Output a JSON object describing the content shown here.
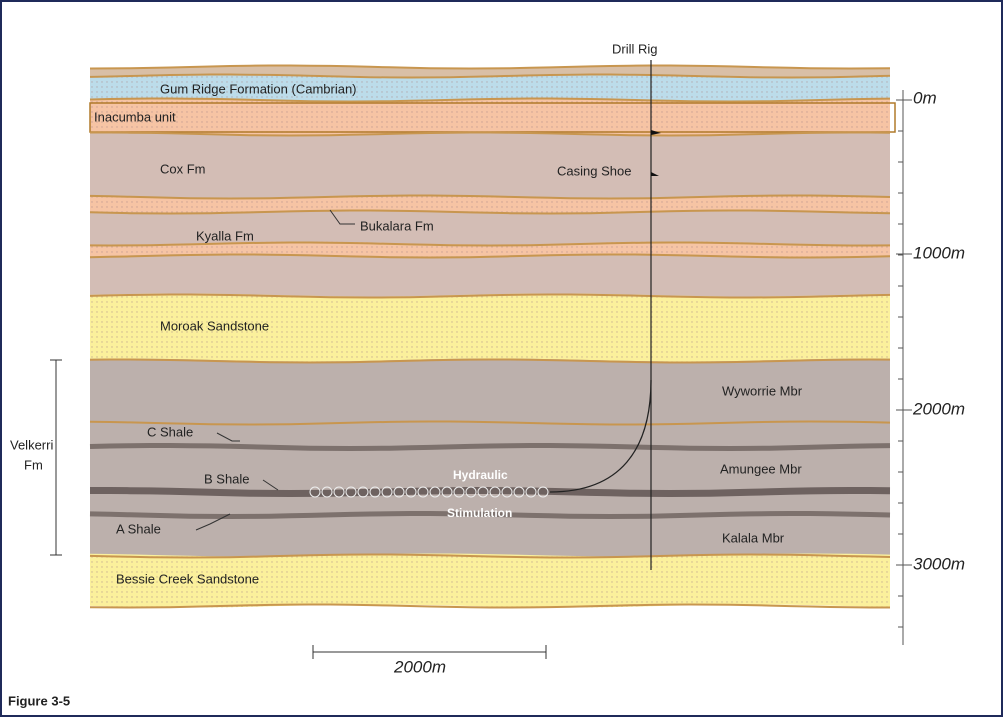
{
  "figure": {
    "caption": "Figure 3-5",
    "scale_bar": "2000m"
  },
  "well": {
    "drill_rig": "Drill Rig",
    "casing_shoe": "Casing Shoe",
    "stimulation": [
      "Hydraulic",
      "Stimulation"
    ]
  },
  "formations": [
    "Gum Ridge Formation (Cambrian)",
    "Inacumba unit",
    "Cox Fm",
    "Bukalara Fm",
    "Kyalla Fm",
    "Moroak Sandstone",
    "Wyworrie Mbr",
    "C Shale",
    "Amungee Mbr",
    "B Shale",
    "A Shale",
    "Kalala Mbr",
    "Bessie Creek Sandstone"
  ],
  "group": {
    "label": [
      "Velkerri",
      "Fm"
    ]
  },
  "depth_axis": {
    "ticks": [
      "0m",
      "1000m",
      "2000m",
      "3000m"
    ]
  }
}
